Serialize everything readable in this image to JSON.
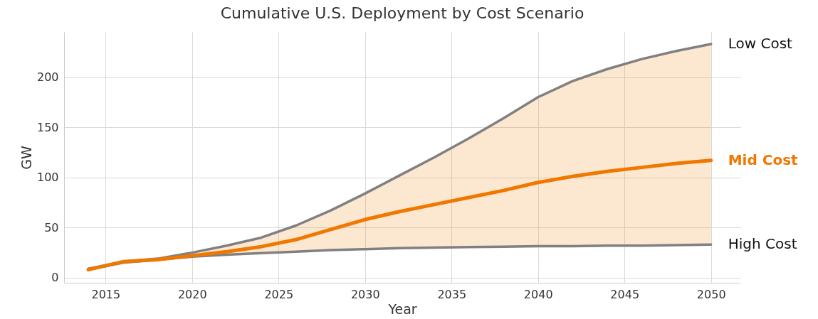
{
  "chart_data": {
    "type": "line",
    "title": "Cumulative U.S. Deployment by Cost Scenario",
    "xlabel": "Year",
    "ylabel": "GW",
    "x": [
      2014,
      2016,
      2018,
      2020,
      2022,
      2024,
      2026,
      2028,
      2030,
      2032,
      2034,
      2036,
      2038,
      2040,
      2042,
      2044,
      2046,
      2048,
      2050
    ],
    "series": [
      {
        "name": "Low Cost",
        "color": "#808080",
        "values": [
          9,
          16,
          19,
          25,
          32,
          40,
          52,
          67,
          84,
          102,
          120,
          139,
          159,
          180,
          196,
          208,
          218,
          226,
          233
        ]
      },
      {
        "name": "High Cost",
        "color": "#808080",
        "values": [
          8,
          15,
          18,
          21,
          23,
          24.5,
          26,
          27.5,
          28.5,
          29.5,
          30,
          30.5,
          31,
          31.5,
          31.5,
          32,
          32,
          32.5,
          33
        ]
      },
      {
        "name": "Mid Cost",
        "color": "#f07800",
        "values": [
          8,
          16,
          18,
          22,
          26,
          31,
          38,
          48,
          58,
          66,
          73,
          80,
          87,
          95,
          101,
          106,
          110,
          114,
          117
        ],
        "lower": [
          8,
          15,
          18,
          21,
          23,
          24.5,
          26,
          27.5,
          28.5,
          29.5,
          30,
          30.5,
          31,
          31.5,
          31.5,
          32,
          32,
          32.5,
          33
        ],
        "upper": [
          9,
          16,
          19,
          25,
          32,
          40,
          52,
          67,
          84,
          102,
          120,
          139,
          159,
          180,
          196,
          208,
          218,
          226,
          233
        ]
      }
    ],
    "xlim": [
      2012.6,
      2051.7
    ],
    "ylim": [
      -5,
      245
    ],
    "xticks": [
      2015,
      2020,
      2025,
      2030,
      2035,
      2040,
      2045,
      2050
    ],
    "yticks": [
      0,
      50,
      100,
      150,
      200
    ],
    "grid": true,
    "legend": false,
    "marker": "none",
    "line_style": "solid"
  }
}
